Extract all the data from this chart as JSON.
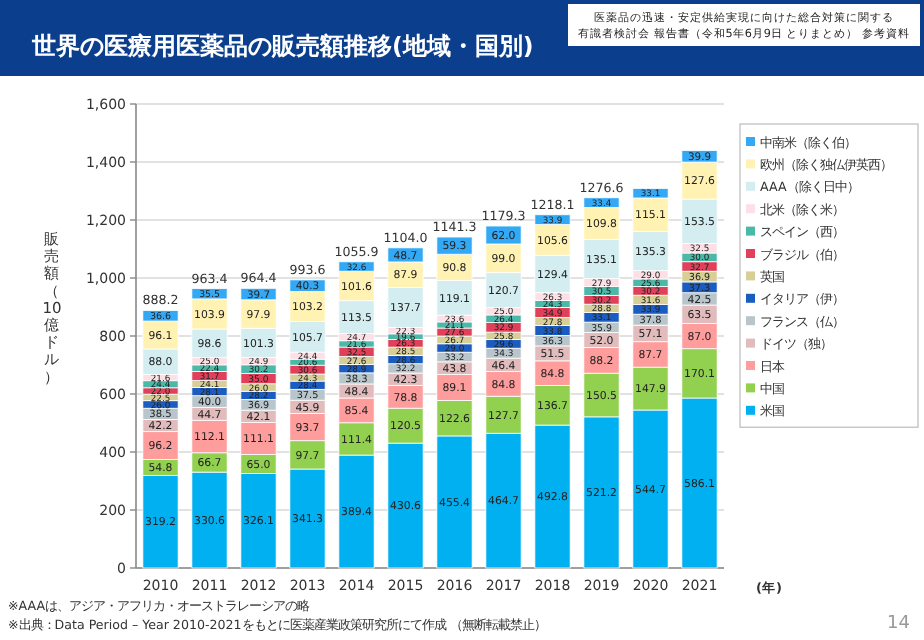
{
  "chart_data": {
    "type": "bar",
    "stacked": true,
    "title": "世界の医療用医薬品の販売額推移(地域・国別)",
    "subtitle": "医薬品の迅速・安定供給実現に向けた総合対策に関する",
    "ylabel": "販売額（10億ドル）",
    "xlabel": "(年)",
    "categories": [
      "2010",
      "2011",
      "2012",
      "2013",
      "2014",
      "2015",
      "2016",
      "2017",
      "2018",
      "2019",
      "2020",
      "2021"
    ],
    "ylim": [
      0,
      1600
    ],
    "yticks": [
      0,
      200,
      400,
      600,
      800,
      {
        "value": 1000,
        "label": "1,000"
      },
      {
        "value": 1200,
        "label": "1,200"
      },
      {
        "value": 1400,
        "label": "1,400"
      },
      {
        "value": 1600,
        "label": "1,600"
      }
    ],
    "grid": "y",
    "legend": "right",
    "totals": [
      "888.2",
      "963.4",
      "964.4",
      "993.6",
      "1055.9",
      "1104.0",
      "1141.3",
      "1179.3",
      "1218.1",
      "1276.6",
      null,
      null
    ],
    "series": [
      {
        "name": "米国",
        "color": "#00b0f0",
        "values": [
          319.2,
          330.6,
          326.1,
          341.3,
          389.4,
          430.6,
          455.4,
          464.7,
          492.8,
          521.2,
          544.7,
          586.1
        ],
        "value_labels": [
          "319.2",
          "330.6",
          "326.1",
          "341.3",
          "389.4",
          "430.6",
          "455.4",
          "464.7",
          "492.8",
          "521.2",
          "544.7",
          "586.1"
        ]
      },
      {
        "name": "中国",
        "color": "#92d050",
        "values": [
          54.8,
          66.7,
          65,
          97.7,
          111.4,
          120.5,
          122.6,
          127.7,
          136.7,
          150.5,
          147.9,
          170.1
        ],
        "value_labels": [
          "54.8",
          "66.7",
          "65.0",
          "97.7",
          "111.4",
          "120.5",
          "122.6",
          "127.7",
          "136.7",
          "150.5",
          "147.9",
          "170.1"
        ]
      },
      {
        "name": "日本",
        "color": "#ff9c9c",
        "values": [
          96.2,
          112.1,
          111.1,
          93.7,
          85.4,
          78.8,
          89.1,
          84.8,
          84.8,
          88.2,
          87.7,
          87
        ],
        "value_labels": [
          "96.2",
          "112.1",
          "111.1",
          "93.7",
          "85.4",
          "78.8",
          "89.1",
          "84.8",
          "84.8",
          "88.2",
          "87.7",
          "87.0"
        ]
      },
      {
        "name": "ドイツ（独）",
        "color": "#e2bcbc",
        "values": [
          42.2,
          44.7,
          42.1,
          45.9,
          48.4,
          42.3,
          43.8,
          46.4,
          51.5,
          52,
          57.1,
          63.5
        ],
        "value_labels": [
          "42.2",
          "44.7",
          "42.1",
          "45.9",
          "48.4",
          "42.3",
          "43.8",
          "46.4",
          "51.5",
          "52.0",
          "57.1",
          "63.5"
        ]
      },
      {
        "name": "フランス（仏）",
        "color": "#b8c6cc",
        "values": [
          38.5,
          40,
          36.9,
          37.5,
          38.3,
          32.2,
          33.2,
          34.3,
          36.3,
          35.9,
          37.8,
          42.5
        ],
        "value_labels": [
          "38.5",
          "40.0",
          "36.9",
          "37.5",
          "38.3",
          "32.2",
          "33.2",
          "34.3",
          "36.3",
          "35.9",
          "37.8",
          "42.5"
        ]
      },
      {
        "name": "イタリア（伊）",
        "color": "#1a5cbf",
        "values": [
          26,
          28.1,
          28.2,
          28.4,
          28.9,
          28.6,
          29,
          29.6,
          33.8,
          33.1,
          33.9,
          37.3
        ],
        "value_labels": [
          "26.0",
          "28.1",
          "28.2",
          "28.4",
          "28.9",
          "28.6",
          "29.0",
          "29.6",
          "33.8",
          "33.1",
          "33.9",
          "37.3"
        ]
      },
      {
        "name": "英国",
        "color": "#d8cf98",
        "values": [
          22.5,
          24.1,
          26,
          24.3,
          27.6,
          28.5,
          26.7,
          25.8,
          27.8,
          28.8,
          31.6,
          36.9
        ],
        "value_labels": [
          "22.5",
          "24.1",
          "26.0",
          "24.3",
          "27.6",
          "28.5",
          "26.7",
          "25.8",
          "27.8",
          "28.8",
          "31.6",
          "36.9"
        ]
      },
      {
        "name": "ブラジル（伯）",
        "color": "#e0405a",
        "values": [
          22,
          31.7,
          35,
          30.6,
          32.5,
          26.3,
          27.6,
          32.9,
          34.9,
          30.2,
          30.2,
          32.7
        ],
        "value_labels": [
          "22.0",
          "31.7",
          "35.0",
          "30.6",
          "32.5",
          "26.3",
          "27.6",
          "32.9",
          "34.9",
          "30.2",
          "30.2",
          "32.7"
        ]
      },
      {
        "name": "スペイン（西）",
        "color": "#4bb8a8",
        "values": [
          24.4,
          22.4,
          30.2,
          20.6,
          21.6,
          19.6,
          21.1,
          26.4,
          24.3,
          30.5,
          25.6,
          30
        ],
        "value_labels": [
          "24.4",
          "22.4",
          "30.2",
          "20.6",
          "21.6",
          "19.6",
          "21.1",
          "26.4",
          "24.3",
          "30.5",
          "25.6",
          "30.0"
        ]
      },
      {
        "name": "北米（除く米）",
        "color": "#fde0e6",
        "values": [
          21.6,
          25,
          24.9,
          24.4,
          24.7,
          22.3,
          23.6,
          25,
          26.3,
          27.9,
          29,
          32.5
        ],
        "value_labels": [
          "21.6",
          "25.0",
          "24.9",
          "24.4",
          "24.7",
          "22.3",
          "23.6",
          "25.0",
          "26.3",
          "27.9",
          "29.0",
          "32.5"
        ]
      },
      {
        "name": "AAA（除く日中）",
        "color": "#d3edf0",
        "values": [
          88,
          98.6,
          101.3,
          105.7,
          113.5,
          137.7,
          119.1,
          120.7,
          129.4,
          135.1,
          135.3,
          153.5
        ],
        "value_labels": [
          "88.0",
          "98.6",
          "101.3",
          "105.7",
          "113.5",
          "137.7",
          "119.1",
          "120.7",
          "129.4",
          "135.1",
          "135.3",
          "153.5"
        ]
      },
      {
        "name": "欧州（除く独仏伊英西）",
        "color": "#fff2b3",
        "values": [
          96.1,
          103.9,
          97.9,
          103.2,
          101.6,
          87.9,
          90.8,
          99,
          105.6,
          109.8,
          115.1,
          127.6
        ],
        "value_labels": [
          "96.1",
          "103.9",
          "97.9",
          "103.2",
          "101.6",
          "87.9",
          "90.8",
          "99.0",
          "105.6",
          "109.8",
          "115.1",
          "127.6"
        ]
      },
      {
        "name": "中南米（除く伯）",
        "color": "#33a9f5",
        "values": [
          36.6,
          35.5,
          39.7,
          40.3,
          32.6,
          48.7,
          59.3,
          62,
          33.9,
          33.4,
          33.1,
          39.9
        ],
        "value_labels": [
          "36.6",
          "35.5",
          "39.7",
          "40.3",
          "32.6",
          "48.7",
          "59.3",
          "62.0",
          "33.9",
          "33.4",
          "33.1",
          "39.9"
        ]
      }
    ],
    "annotations": [
      "有識者検討会 報告書（令和5年6月9日 とりまとめ） 参考資料",
      "※AAAは、アジア・アフリカ・オーストラレーシアの略",
      "※出典：Data Period – Year 2010-2021をもとに医薬産業政策研究所にて作成 （無断転載禁止）",
      "14"
    ]
  }
}
